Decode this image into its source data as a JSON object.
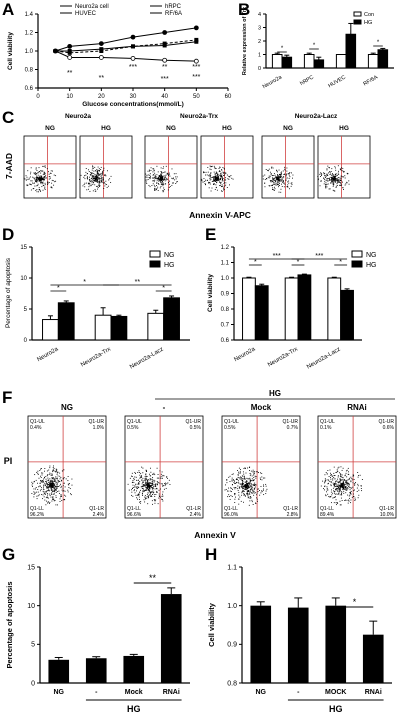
{
  "panels": {
    "A": "A",
    "B": "B",
    "C": "C",
    "D": "D",
    "E": "E",
    "F": "F",
    "G": "G",
    "H": "H"
  },
  "chart_data": [
    {
      "id": "A",
      "type": "line",
      "xlabel": "Glucose concentrations(mmol/L)",
      "ylabel": "Cell viability",
      "x": [
        5.5,
        10,
        20,
        30,
        40,
        50
      ],
      "xlim": [
        0,
        60
      ],
      "xticks": [
        "0",
        "10",
        "20",
        "30",
        "40",
        "50",
        "60"
      ],
      "ylim": [
        0.6,
        1.4
      ],
      "yticks": [
        "0.6",
        "0.8",
        "1.0",
        "1.2",
        "1.4"
      ],
      "legend": [
        "Neuro2a cell",
        "HUVEC",
        "hRPC",
        "RF/6A"
      ],
      "series": [
        {
          "name": "Neuro2a cell",
          "values": [
            1.0,
            0.93,
            0.93,
            0.92,
            0.9,
            0.89
          ]
        },
        {
          "name": "HUVEC",
          "values": [
            1.0,
            1.05,
            1.08,
            1.15,
            1.2,
            1.25
          ]
        },
        {
          "name": "hRPC",
          "values": [
            1.0,
            1.0,
            1.02,
            1.05,
            1.06,
            1.1
          ]
        },
        {
          "name": "RF/6A",
          "values": [
            1.0,
            0.98,
            1.0,
            1.05,
            1.08,
            1.12
          ]
        }
      ],
      "annotations": [
        "**",
        "**",
        "***",
        "**",
        "***",
        "***",
        "***"
      ]
    },
    {
      "id": "B",
      "type": "bar",
      "ylabel": "Relative expression of Trx",
      "categories": [
        "Neuro2a",
        "hRPC",
        "HUVEC",
        "RF/6A"
      ],
      "ylim": [
        0,
        4
      ],
      "yticks": [
        "0",
        "1",
        "2",
        "3",
        "4"
      ],
      "legend": [
        "Con",
        "HG"
      ],
      "series": [
        {
          "name": "Con",
          "values": [
            1.0,
            1.0,
            1.0,
            1.0
          ]
        },
        {
          "name": "HG",
          "values": [
            0.8,
            0.6,
            2.5,
            1.35
          ]
        }
      ],
      "annotations": [
        "*",
        "*",
        "*"
      ]
    },
    {
      "id": "D",
      "type": "bar",
      "ylabel": "Percentage of apoptosis",
      "categories": [
        "Neuro2a",
        "Neuro2a-Trx",
        "Neuro2a-Lacz"
      ],
      "ylim": [
        0,
        15
      ],
      "yticks": [
        "0",
        "5",
        "10",
        "15"
      ],
      "legend": [
        "NG",
        "HG"
      ],
      "series": [
        {
          "name": "NG",
          "values": [
            3.3,
            4.0,
            4.3
          ]
        },
        {
          "name": "HG",
          "values": [
            6.0,
            3.8,
            6.8
          ]
        }
      ],
      "annotations": [
        "*",
        "*",
        "**",
        "*"
      ]
    },
    {
      "id": "E",
      "type": "bar",
      "ylabel": "Cell viability",
      "categories": [
        "Neuro2a",
        "Neuro2a-Trx",
        "Neuro2a-Lacz"
      ],
      "ylim": [
        0.6,
        1.2
      ],
      "yticks": [
        "0.6",
        "0.7",
        "0.8",
        "0.9",
        "1.0",
        "1.1",
        "1.2"
      ],
      "legend": [
        "NG",
        "HG"
      ],
      "series": [
        {
          "name": "NG",
          "values": [
            1.0,
            1.0,
            1.0
          ]
        },
        {
          "name": "HG",
          "values": [
            0.95,
            1.02,
            0.92
          ]
        }
      ],
      "annotations": [
        "*",
        "***",
        "*",
        "***",
        "*"
      ]
    },
    {
      "id": "G",
      "type": "bar",
      "ylabel": "Percentage of apoptosis",
      "categories": [
        "NG",
        "-",
        "Mock",
        "RNAi"
      ],
      "group_label": "HG",
      "ylim": [
        0,
        15
      ],
      "yticks": [
        "0",
        "5",
        "10",
        "15"
      ],
      "values": [
        3.0,
        3.2,
        3.5,
        11.5
      ],
      "errors": [
        0.3,
        0.2,
        0.2,
        0.8
      ],
      "annotations": [
        "**"
      ]
    },
    {
      "id": "H",
      "type": "bar",
      "ylabel": "Cell viability",
      "categories": [
        "NG",
        "-",
        "MOCK",
        "RNAi"
      ],
      "group_label": "HG",
      "ylim": [
        0.8,
        1.1
      ],
      "yticks": [
        "0.8",
        "0.9",
        "1.0",
        "1.1"
      ],
      "values": [
        1.0,
        0.995,
        1.0,
        0.925
      ],
      "errors": [
        0.01,
        0.025,
        0.02,
        0.035
      ],
      "annotations": [
        "*"
      ]
    }
  ],
  "flow_C": {
    "ylabel": "7-AAD",
    "xlabel": "Annexin V-APC",
    "groups": [
      "Neuro2a",
      "Neuro2a-Trx",
      "Neuro2a-Lacz"
    ],
    "plots": [
      "NG",
      "HG",
      "NG",
      "HG",
      "NG",
      "HG"
    ]
  },
  "flow_F": {
    "ylabel": "PI",
    "xlabel": "Annexin V",
    "hg_label": "HG",
    "plots": [
      {
        "title": "NG",
        "ul": "Q1-UL",
        "ul_v": "0.4%",
        "ur": "Q1-UR",
        "ur_v": "1.0%",
        "ll": "Q1-LL",
        "ll_v": "96.2%",
        "lr": "Q1-LR",
        "lr_v": "2.4%"
      },
      {
        "title": "-",
        "ul": "Q1-UL",
        "ul_v": "0.5%",
        "ur": "Q1-UR",
        "ur_v": "0.5%",
        "ll": "Q1-LL",
        "ll_v": "96.6%",
        "lr": "Q1-LR",
        "lr_v": "2.4%"
      },
      {
        "title": "Mock",
        "ul": "Q1-UL",
        "ul_v": "0.5%",
        "ur": "Q1-UR",
        "ur_v": "0.7%",
        "ll": "Q1-LL",
        "ll_v": "96.0%",
        "lr": "Q1-LR",
        "lr_v": "2.8%"
      },
      {
        "title": "RNAi",
        "ul": "Q1-UL",
        "ul_v": "0.1%",
        "ur": "Q1-UR",
        "ur_v": "0.6%",
        "ll": "Q1-LL",
        "ll_v": "89.4%",
        "lr": "Q1-LR",
        "lr_v": "10.0%"
      }
    ]
  }
}
